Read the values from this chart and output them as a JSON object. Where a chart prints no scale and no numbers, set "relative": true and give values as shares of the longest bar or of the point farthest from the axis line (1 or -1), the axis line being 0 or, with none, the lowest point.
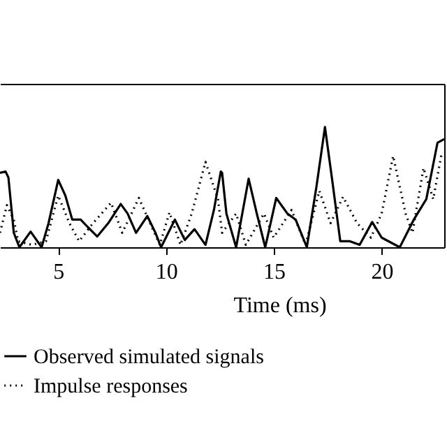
{
  "chart_data": {
    "type": "line",
    "xlabel": "Time (ms)",
    "relative": true,
    "xlim": [
      2.3,
      22.9
    ],
    "xticks": [
      5,
      10,
      15,
      20
    ],
    "grid": false,
    "legend": "bottom left",
    "marker": "none",
    "series": [
      {
        "name": "Observed simulated signals",
        "color": "#000000",
        "line_style": "solid",
        "x": [
          2.3,
          2.56,
          2.69,
          2.94,
          3.2,
          3.72,
          4.23,
          4.55,
          5.0,
          5.33,
          5.65,
          6.04,
          6.36,
          6.81,
          7.32,
          7.9,
          8.22,
          8.61,
          9.13,
          9.51,
          9.77,
          10.41,
          10.87,
          11.32,
          11.83,
          12.22,
          12.54,
          12.6,
          12.8,
          13.25,
          13.83,
          14.21,
          14.6,
          15.11,
          15.63,
          16.01,
          16.53,
          16.98,
          17.37,
          17.69,
          18.08,
          18.53,
          18.98,
          19.56,
          20.0,
          20.84,
          21.49,
          22.07,
          22.59,
          22.9
        ],
        "values": [
          0.62,
          0.63,
          0.58,
          0.12,
          0,
          0.13,
          0,
          0.2,
          0.56,
          0.43,
          0.23,
          0.23,
          0.17,
          0.09,
          0.2,
          0.36,
          0.28,
          0.12,
          0.26,
          0.12,
          0,
          0.23,
          0.06,
          0.15,
          0.02,
          0.31,
          0.63,
          0.62,
          0.28,
          0,
          0.57,
          0.28,
          0,
          0.41,
          0.28,
          0.23,
          0,
          0.51,
          1.0,
          0.58,
          0.05,
          0.05,
          0.02,
          0.21,
          0.08,
          0,
          0.23,
          0.4,
          0.87,
          0.9
        ]
      },
      {
        "name": "Impulse responses",
        "color": "#000000",
        "line_style": "dotted",
        "x": [
          2.3,
          2.62,
          2.94,
          3.14,
          3.78,
          4.43,
          5.0,
          5.52,
          5.97,
          6.61,
          7.45,
          7.97,
          8.74,
          9.26,
          9.71,
          10.16,
          10.67,
          11.19,
          11.83,
          12.41,
          12.6,
          13.25,
          13.7,
          14.54,
          14.99,
          15.82,
          16.47,
          17.11,
          17.63,
          18.21,
          18.86,
          19.5,
          20.0,
          20.53,
          21.11,
          21.43,
          21.94,
          22.39,
          22.78
        ],
        "values": [
          0.12,
          0.35,
          0.23,
          0.05,
          0.02,
          0.05,
          0.43,
          0.2,
          0.05,
          0.2,
          0.37,
          0.12,
          0.41,
          0.2,
          0.02,
          0.29,
          0.02,
          0.28,
          0.71,
          0.4,
          0.12,
          0.28,
          0.02,
          0.28,
          0.08,
          0.31,
          0.02,
          0.47,
          0.2,
          0.42,
          0.2,
          0.08,
          0.28,
          0.76,
          0.28,
          0.12,
          0.66,
          0.4,
          0.78
        ]
      }
    ]
  }
}
